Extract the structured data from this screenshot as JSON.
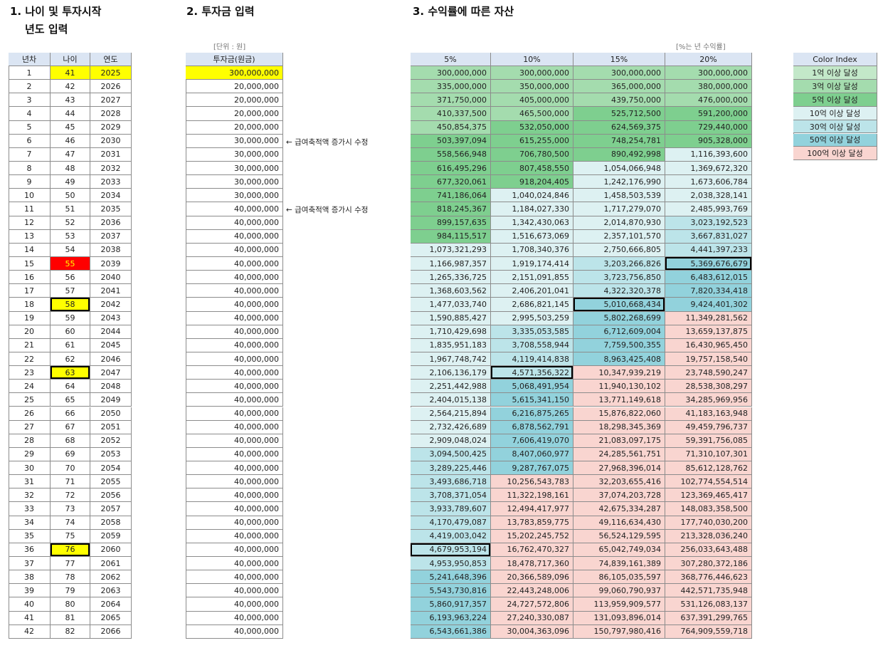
{
  "age": {
    "title": [
      "1. 나이 및 투자시작",
      "년도 입력"
    ],
    "columns": [
      "년차",
      "나이",
      "연도"
    ],
    "rows": [
      [
        1,
        41,
        2025
      ],
      [
        2,
        42,
        2026
      ],
      [
        3,
        43,
        2027
      ],
      [
        4,
        44,
        2028
      ],
      [
        5,
        45,
        2029
      ],
      [
        6,
        46,
        2030
      ],
      [
        7,
        47,
        2031
      ],
      [
        8,
        48,
        2032
      ],
      [
        9,
        49,
        2033
      ],
      [
        10,
        50,
        2034
      ],
      [
        11,
        51,
        2035
      ],
      [
        12,
        52,
        2036
      ],
      [
        13,
        53,
        2037
      ],
      [
        14,
        54,
        2038
      ],
      [
        15,
        55,
        2039
      ],
      [
        16,
        56,
        2040
      ],
      [
        17,
        57,
        2041
      ],
      [
        18,
        58,
        2042
      ],
      [
        19,
        59,
        2043
      ],
      [
        20,
        60,
        2044
      ],
      [
        21,
        61,
        2045
      ],
      [
        22,
        62,
        2046
      ],
      [
        23,
        63,
        2047
      ],
      [
        24,
        64,
        2048
      ],
      [
        25,
        65,
        2049
      ],
      [
        26,
        66,
        2050
      ],
      [
        27,
        67,
        2051
      ],
      [
        28,
        68,
        2052
      ],
      [
        29,
        69,
        2053
      ],
      [
        30,
        70,
        2054
      ],
      [
        31,
        71,
        2055
      ],
      [
        32,
        72,
        2056
      ],
      [
        33,
        73,
        2057
      ],
      [
        34,
        74,
        2058
      ],
      [
        35,
        75,
        2059
      ],
      [
        36,
        76,
        2060
      ],
      [
        37,
        77,
        2061
      ],
      [
        38,
        78,
        2062
      ],
      [
        39,
        79,
        2063
      ],
      [
        40,
        80,
        2064
      ],
      [
        41,
        81,
        2065
      ],
      [
        42,
        82,
        2066
      ]
    ]
  },
  "investment": {
    "title": "2. 투자금 입력",
    "unit": "[단위 : 원]",
    "column": "투자금(원금)",
    "rows": [
      "300,000,000",
      "20,000,000",
      "20,000,000",
      "20,000,000",
      "20,000,000",
      "30,000,000",
      "30,000,000",
      "30,000,000",
      "30,000,000",
      "30,000,000",
      "40,000,000",
      "40,000,000",
      "40,000,000",
      "40,000,000",
      "40,000,000",
      "40,000,000",
      "40,000,000",
      "40,000,000",
      "40,000,000",
      "40,000,000",
      "40,000,000",
      "40,000,000",
      "40,000,000",
      "40,000,000",
      "40,000,000",
      "40,000,000",
      "40,000,000",
      "40,000,000",
      "40,000,000",
      "40,000,000",
      "40,000,000",
      "40,000,000",
      "40,000,000",
      "40,000,000",
      "40,000,000",
      "40,000,000",
      "40,000,000",
      "40,000,000",
      "40,000,000",
      "40,000,000",
      "40,000,000",
      "40,000,000"
    ],
    "notes": [
      "← 급여축적액 증가시 수정",
      "← 급여축적액 증가시 수정"
    ]
  },
  "returns": {
    "title": "3. 수익률에 따른 자산",
    "unit": "[%는 년 수익률]",
    "columns": [
      "5%",
      "10%",
      "15%",
      "20%"
    ],
    "rows": [
      [
        "300,000,000",
        "300,000,000",
        "300,000,000",
        "300,000,000"
      ],
      [
        "335,000,000",
        "350,000,000",
        "365,000,000",
        "380,000,000"
      ],
      [
        "371,750,000",
        "405,000,000",
        "439,750,000",
        "476,000,000"
      ],
      [
        "410,337,500",
        "465,500,000",
        "525,712,500",
        "591,200,000"
      ],
      [
        "450,854,375",
        "532,050,000",
        "624,569,375",
        "729,440,000"
      ],
      [
        "503,397,094",
        "615,255,000",
        "748,254,781",
        "905,328,000"
      ],
      [
        "558,566,948",
        "706,780,500",
        "890,492,998",
        "1,116,393,600"
      ],
      [
        "616,495,296",
        "807,458,550",
        "1,054,066,948",
        "1,369,672,320"
      ],
      [
        "677,320,061",
        "918,204,405",
        "1,242,176,990",
        "1,673,606,784"
      ],
      [
        "741,186,064",
        "1,040,024,846",
        "1,458,503,539",
        "2,038,328,141"
      ],
      [
        "818,245,367",
        "1,184,027,330",
        "1,717,279,070",
        "2,485,993,769"
      ],
      [
        "899,157,635",
        "1,342,430,063",
        "2,014,870,930",
        "3,023,192,523"
      ],
      [
        "984,115,517",
        "1,516,673,069",
        "2,357,101,570",
        "3,667,831,027"
      ],
      [
        "1,073,321,293",
        "1,708,340,376",
        "2,750,666,805",
        "4,441,397,233"
      ],
      [
        "1,166,987,357",
        "1,919,174,414",
        "3,203,266,826",
        "5,369,676,679"
      ],
      [
        "1,265,336,725",
        "2,151,091,855",
        "3,723,756,850",
        "6,483,612,015"
      ],
      [
        "1,368,603,562",
        "2,406,201,041",
        "4,322,320,378",
        "7,820,334,418"
      ],
      [
        "1,477,033,740",
        "2,686,821,145",
        "5,010,668,434",
        "9,424,401,302"
      ],
      [
        "1,590,885,427",
        "2,995,503,259",
        "5,802,268,699",
        "11,349,281,562"
      ],
      [
        "1,710,429,698",
        "3,335,053,585",
        "6,712,609,004",
        "13,659,137,875"
      ],
      [
        "1,835,951,183",
        "3,708,558,944",
        "7,759,500,355",
        "16,430,965,450"
      ],
      [
        "1,967,748,742",
        "4,119,414,838",
        "8,963,425,408",
        "19,757,158,540"
      ],
      [
        "2,106,136,179",
        "4,571,356,322",
        "10,347,939,219",
        "23,748,590,247"
      ],
      [
        "2,251,442,988",
        "5,068,491,954",
        "11,940,130,102",
        "28,538,308,297"
      ],
      [
        "2,404,015,138",
        "5,615,341,150",
        "13,771,149,618",
        "34,285,969,956"
      ],
      [
        "2,564,215,894",
        "6,216,875,265",
        "15,876,822,060",
        "41,183,163,948"
      ],
      [
        "2,732,426,689",
        "6,878,562,791",
        "18,298,345,369",
        "49,459,796,737"
      ],
      [
        "2,909,048,024",
        "7,606,419,070",
        "21,083,097,175",
        "59,391,756,085"
      ],
      [
        "3,094,500,425",
        "8,407,060,977",
        "24,285,561,751",
        "71,310,107,301"
      ],
      [
        "3,289,225,446",
        "9,287,767,075",
        "27,968,396,014",
        "85,612,128,762"
      ],
      [
        "3,493,686,718",
        "10,256,543,783",
        "32,203,655,416",
        "102,774,554,514"
      ],
      [
        "3,708,371,054",
        "11,322,198,161",
        "37,074,203,728",
        "123,369,465,417"
      ],
      [
        "3,933,789,607",
        "12,494,417,977",
        "42,675,334,287",
        "148,083,358,500"
      ],
      [
        "4,170,479,087",
        "13,783,859,775",
        "49,116,634,430",
        "177,740,030,200"
      ],
      [
        "4,419,003,042",
        "15,202,245,752",
        "56,524,129,595",
        "213,328,036,240"
      ],
      [
        "4,679,953,194",
        "16,762,470,327",
        "65,042,749,034",
        "256,033,643,488"
      ],
      [
        "4,953,950,853",
        "18,478,717,360",
        "74,839,161,389",
        "307,280,372,186"
      ],
      [
        "5,241,648,396",
        "20,366,589,096",
        "86,105,035,597",
        "368,776,446,623"
      ],
      [
        "5,543,730,816",
        "22,443,248,006",
        "99,060,790,937",
        "442,571,735,948"
      ],
      [
        "5,860,917,357",
        "24,727,572,806",
        "113,959,909,577",
        "531,126,083,137"
      ],
      [
        "6,193,963,224",
        "27,240,330,087",
        "131,093,896,014",
        "637,391,299,765"
      ],
      [
        "6,543,661,386",
        "30,004,363,096",
        "150,797,980,416",
        "764,909,559,718"
      ]
    ]
  },
  "color_index": {
    "title": "Color Index",
    "items": [
      {
        "label": "1억 이상 달성",
        "min": 100000000,
        "color": "#c3e8c9"
      },
      {
        "label": "3억 이상 달성",
        "min": 300000000,
        "color": "#a4dcae"
      },
      {
        "label": "5억 이상 달성",
        "min": 500000000,
        "color": "#7ecf8f"
      },
      {
        "label": "10억 이상 달성",
        "min": 1000000000,
        "color": "#ddf1f2"
      },
      {
        "label": "30억 이상 달성",
        "min": 3000000000,
        "color": "#bce4e9"
      },
      {
        "label": "50억 이상 달성",
        "min": 5000000000,
        "color": "#92d2dc"
      },
      {
        "label": "100억 이상 달성",
        "min": 10000000000,
        "color": "#f9d5d0"
      }
    ]
  }
}
